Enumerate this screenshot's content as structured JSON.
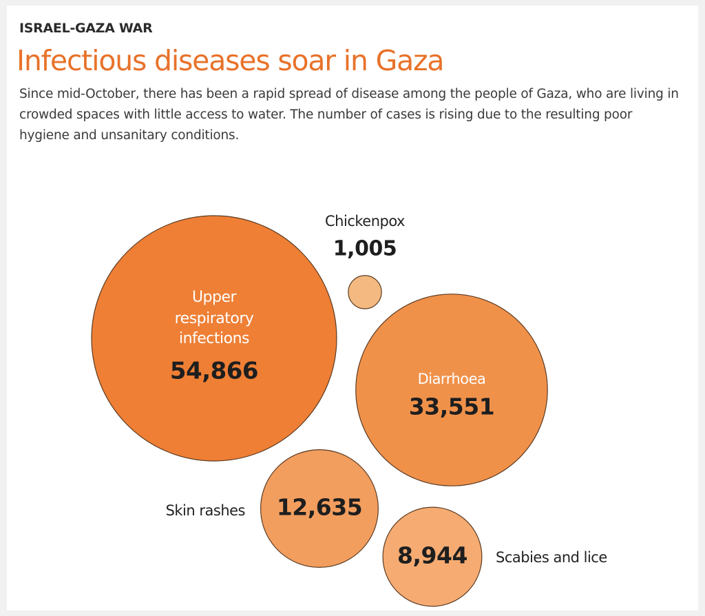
{
  "header": {
    "kicker": "ISRAEL-GAZA WAR",
    "title": "Infectious diseases soar in Gaza",
    "subtitle": "Since mid-October, there has been a rapid spread of disease among the people of Gaza, who are living in crowded spaces with little access to water. The number of cases is rising due to the resulting poor hygiene and unsanitary conditions."
  },
  "chart_data": {
    "type": "bubble",
    "title": "Infectious diseases soar in Gaza",
    "subtitle": "Since mid-October, there has been a rapid spread of disease among the people of Gaza, who are living in crowded spaces with little access to water. The number of cases is rising due to the resulting poor hygiene and unsanitary conditions.",
    "categories": [
      "Upper respiratory infections",
      "Diarrhoea",
      "Skin rashes",
      "Scabies and lice",
      "Chickenpox"
    ],
    "values": [
      54866,
      33551,
      12635,
      8944,
      1005
    ],
    "value_labels": [
      "54,866",
      "33,551",
      "12,635",
      "8,944",
      "1,005"
    ],
    "category_lines": [
      [
        "Upper",
        "respiratory",
        "infections"
      ],
      [
        "Diarrhoea"
      ],
      [
        "Skin rashes"
      ],
      [
        "Scabies and lice"
      ],
      [
        "Chickenpox"
      ]
    ],
    "colors": [
      "#ee7f35",
      "#f0914a",
      "#f29e5f",
      "#f5ab72",
      "#f3b980"
    ],
    "stroke_color": "#5a3a22",
    "grid": false,
    "legend": "none"
  }
}
